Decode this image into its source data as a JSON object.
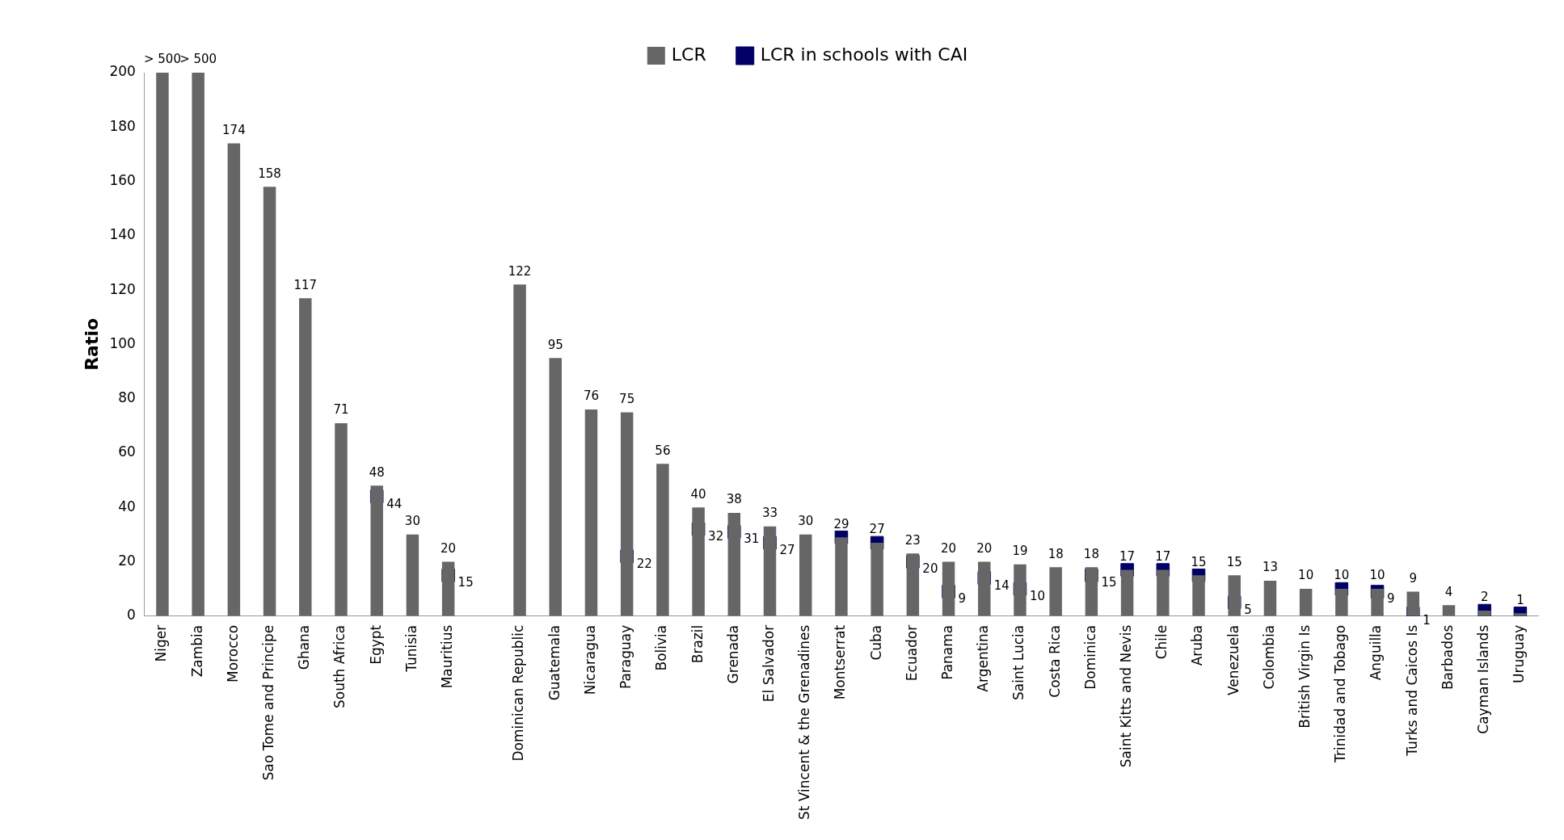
{
  "chart_data": {
    "type": "bar",
    "ylabel": "Ratio",
    "categories": [
      "Niger",
      "Zambia",
      "Morocco",
      "Sao Tome and Principe",
      "Ghana",
      "South Africa",
      "Egypt",
      "Tunisia",
      "Mauritius",
      null,
      "Dominican Republic",
      "Guatemala",
      "Nicaragua",
      "Paraguay",
      "Bolivia",
      "Brazil",
      "Grenada",
      "El Salvador",
      "St Vincent & the Grenadines",
      "Montserrat",
      "Cuba",
      "Ecuador",
      "Panama",
      "Argentina",
      "Saint Lucia",
      "Costa Rica",
      "Dominica",
      "Saint Kitts and Nevis",
      "Chile",
      "Aruba",
      "Venezuela",
      "Colombia",
      "British Virgin Is",
      "Trinidad and Tobago",
      "Anguilla",
      "Turks and Caicos Is",
      "Barbados",
      "Cayman Islands",
      "Uruguay"
    ],
    "series": [
      {
        "name": "LCR",
        "color": "#666666",
        "values": [
          200,
          200,
          174,
          158,
          117,
          71,
          48,
          30,
          20,
          null,
          122,
          95,
          76,
          75,
          56,
          40,
          38,
          33,
          30,
          29,
          27,
          23,
          20,
          20,
          19,
          18,
          18,
          17,
          17,
          15,
          15,
          13,
          10,
          10,
          10,
          9,
          4,
          2,
          1
        ],
        "value_labels": [
          "> 500",
          "> 500",
          "174",
          "158",
          "117",
          "71",
          "48",
          "30",
          "20",
          null,
          "122",
          "95",
          "76",
          "75",
          "56",
          "40",
          "38",
          "33",
          "30",
          "29",
          "27",
          "23",
          "20",
          "20",
          "19",
          "18",
          "18",
          "17",
          "17",
          "15",
          "15",
          "13",
          "10",
          "10",
          "10",
          "9",
          "4",
          "2",
          "1"
        ]
      },
      {
        "name": "LCR in schools with CAI",
        "type": "scatter",
        "color": "#000066",
        "values": [
          null,
          null,
          null,
          null,
          null,
          null,
          44,
          null,
          15,
          null,
          null,
          null,
          null,
          22,
          null,
          32,
          31,
          27,
          null,
          29,
          27,
          20,
          9,
          14,
          10,
          null,
          15,
          17,
          17,
          15,
          5,
          null,
          null,
          10,
          9,
          1,
          null,
          2,
          1
        ],
        "value_labels": [
          null,
          null,
          null,
          null,
          null,
          null,
          "44",
          null,
          "15",
          null,
          null,
          null,
          null,
          "22",
          null,
          "32",
          "31",
          "27",
          null,
          null,
          null,
          "20",
          "9",
          "14",
          "10",
          null,
          "15",
          null,
          null,
          null,
          "5",
          null,
          null,
          null,
          "9",
          "1",
          null,
          null,
          null
        ]
      }
    ],
    "ylim": [
      0,
      200
    ],
    "yticks": [
      0,
      20,
      40,
      60,
      80,
      100,
      120,
      140,
      160,
      180,
      200
    ],
    "grid": false,
    "legend": "top",
    "marker": "square"
  }
}
